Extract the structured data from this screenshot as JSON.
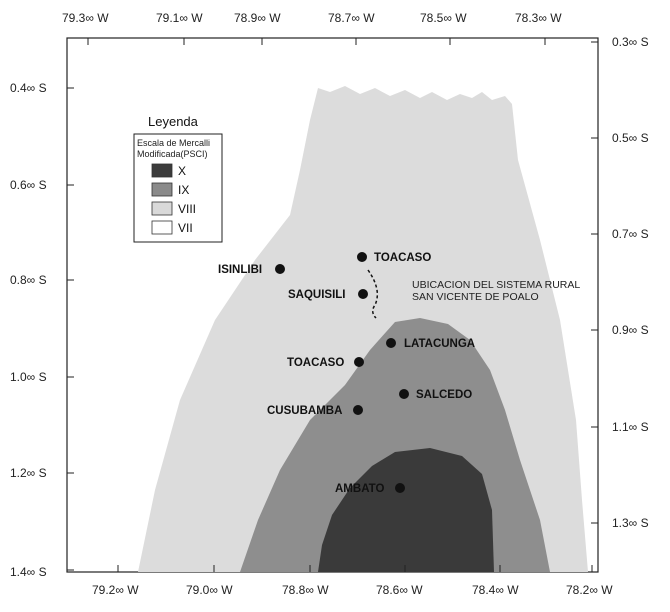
{
  "map": {
    "axes": {
      "top_x_ticks": [
        "79.3∞ W",
        "79.1∞ W",
        "78.9∞ W",
        "78.7∞ W",
        "78.5∞ W",
        "78.3∞ W"
      ],
      "bottom_x_ticks": [
        "79.2∞ W",
        "79.0∞ W",
        "78.8∞ W",
        "78.6∞ W",
        "78.4∞ W",
        "78.2∞ W"
      ],
      "left_y_ticks": [
        "0.4∞ S",
        "0.6∞ S",
        "0.8∞ S",
        "1.0∞ S",
        "1.2∞ S",
        "1.4∞ S"
      ],
      "right_y_ticks": [
        "0.3∞ S",
        "0.5∞ S",
        "0.7∞ S",
        "0.9∞ S",
        "1.1∞ S",
        "1.3∞ S"
      ]
    },
    "legend": {
      "title": "Leyenda",
      "scale_line1": "Escala de Mercalli",
      "scale_line2": "Modificada(PSCI)",
      "items": [
        {
          "label": "X",
          "color": "#3c3c3c"
        },
        {
          "label": "IX",
          "color": "#8a8a8a"
        },
        {
          "label": "VIII",
          "color": "#d9d9d9"
        },
        {
          "label": "VII",
          "color": "#ffffff"
        }
      ]
    },
    "intensity_colors": {
      "VIII": "#dcdcdc",
      "IX": "#8e8e8e",
      "X": "#3a3a3a"
    },
    "places": [
      {
        "name": "TOACASO"
      },
      {
        "name": "ISINLIBI"
      },
      {
        "name": "SAQUISILI"
      },
      {
        "name": "LATACUNGA"
      },
      {
        "name": "TOACASO"
      },
      {
        "name": "SALCEDO"
      },
      {
        "name": "CUSUBAMBA"
      },
      {
        "name": "AMBATO"
      }
    ],
    "annotation": {
      "line1": "UBICACION DEL SISTEMA RURAL",
      "line2": "SAN VICENTE DE POALO"
    }
  }
}
